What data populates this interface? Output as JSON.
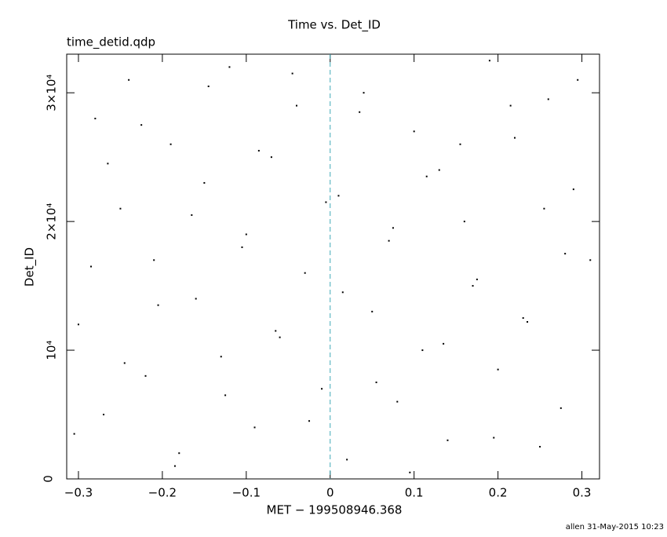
{
  "chart_data": {
    "type": "scatter",
    "title": "Time vs. Det_ID",
    "subtitle": "time_detid.qdp",
    "x_label": "MET − 199508946.368",
    "y_label": "Det_ID",
    "footer": "allen 31-May-2015 10:23",
    "color": "#000000",
    "vline": {
      "value": 0,
      "color": "#3fa9b8"
    },
    "xlim": [
      -0.314,
      0.321
    ],
    "ylim": [
      0,
      33000
    ],
    "xticks": [
      {
        "value": -0.3,
        "label": "−0.3"
      },
      {
        "value": -0.2,
        "label": "−0.2"
      },
      {
        "value": -0.1,
        "label": "−0.1"
      },
      0,
      0.1,
      0.2,
      0.3
    ],
    "yticks": [
      0,
      {
        "value": 10000,
        "label": "10⁴"
      },
      {
        "value": 20000,
        "label": "2×10⁴"
      },
      {
        "value": 30000,
        "label": "3×10⁴"
      }
    ],
    "x": [
      -0.3,
      -0.28,
      -0.27,
      -0.25,
      -0.24,
      -0.22,
      -0.21,
      -0.19,
      -0.18,
      -0.16,
      -0.15,
      -0.13,
      -0.12,
      -0.1,
      -0.09,
      -0.07,
      -0.06,
      -0.04,
      -0.03,
      -0.01,
      0.01,
      0.02,
      0.04,
      0.05,
      0.07,
      0.08,
      0.1,
      0.11,
      0.13,
      0.14,
      0.16,
      0.17,
      0.19,
      0.2,
      0.22,
      0.23,
      0.25,
      0.26,
      0.28,
      0.29,
      -0.305,
      -0.285,
      -0.265,
      -0.245,
      -0.225,
      -0.205,
      -0.185,
      -0.165,
      -0.145,
      -0.125,
      -0.105,
      -0.085,
      -0.065,
      -0.045,
      -0.025,
      -0.005,
      0.015,
      0.035,
      0.055,
      0.075,
      0.095,
      0.115,
      0.135,
      0.155,
      0.175,
      0.195,
      0.215,
      0.235,
      0.255,
      0.275,
      0.295,
      0.31
    ],
    "values": [
      12000,
      28000,
      5000,
      21000,
      31000,
      8000,
      17000,
      26000,
      2000,
      14000,
      23000,
      9500,
      32000,
      19000,
      4000,
      25000,
      11000,
      29000,
      16000,
      7000,
      22000,
      1500,
      30000,
      13000,
      18500,
      6000,
      27000,
      10000,
      24000,
      3000,
      20000,
      15000,
      32500,
      8500,
      26500,
      12500,
      2500,
      29500,
      17500,
      22500,
      3500,
      16500,
      24500,
      9000,
      27500,
      13500,
      1000,
      20500,
      30500,
      6500,
      18000,
      25500,
      11500,
      31500,
      4500,
      21500,
      14500,
      28500,
      7500,
      19500,
      500,
      23500,
      10500,
      26000,
      15500,
      3200,
      29000,
      12200,
      21000,
      5500,
      31000,
      17000
    ]
  }
}
